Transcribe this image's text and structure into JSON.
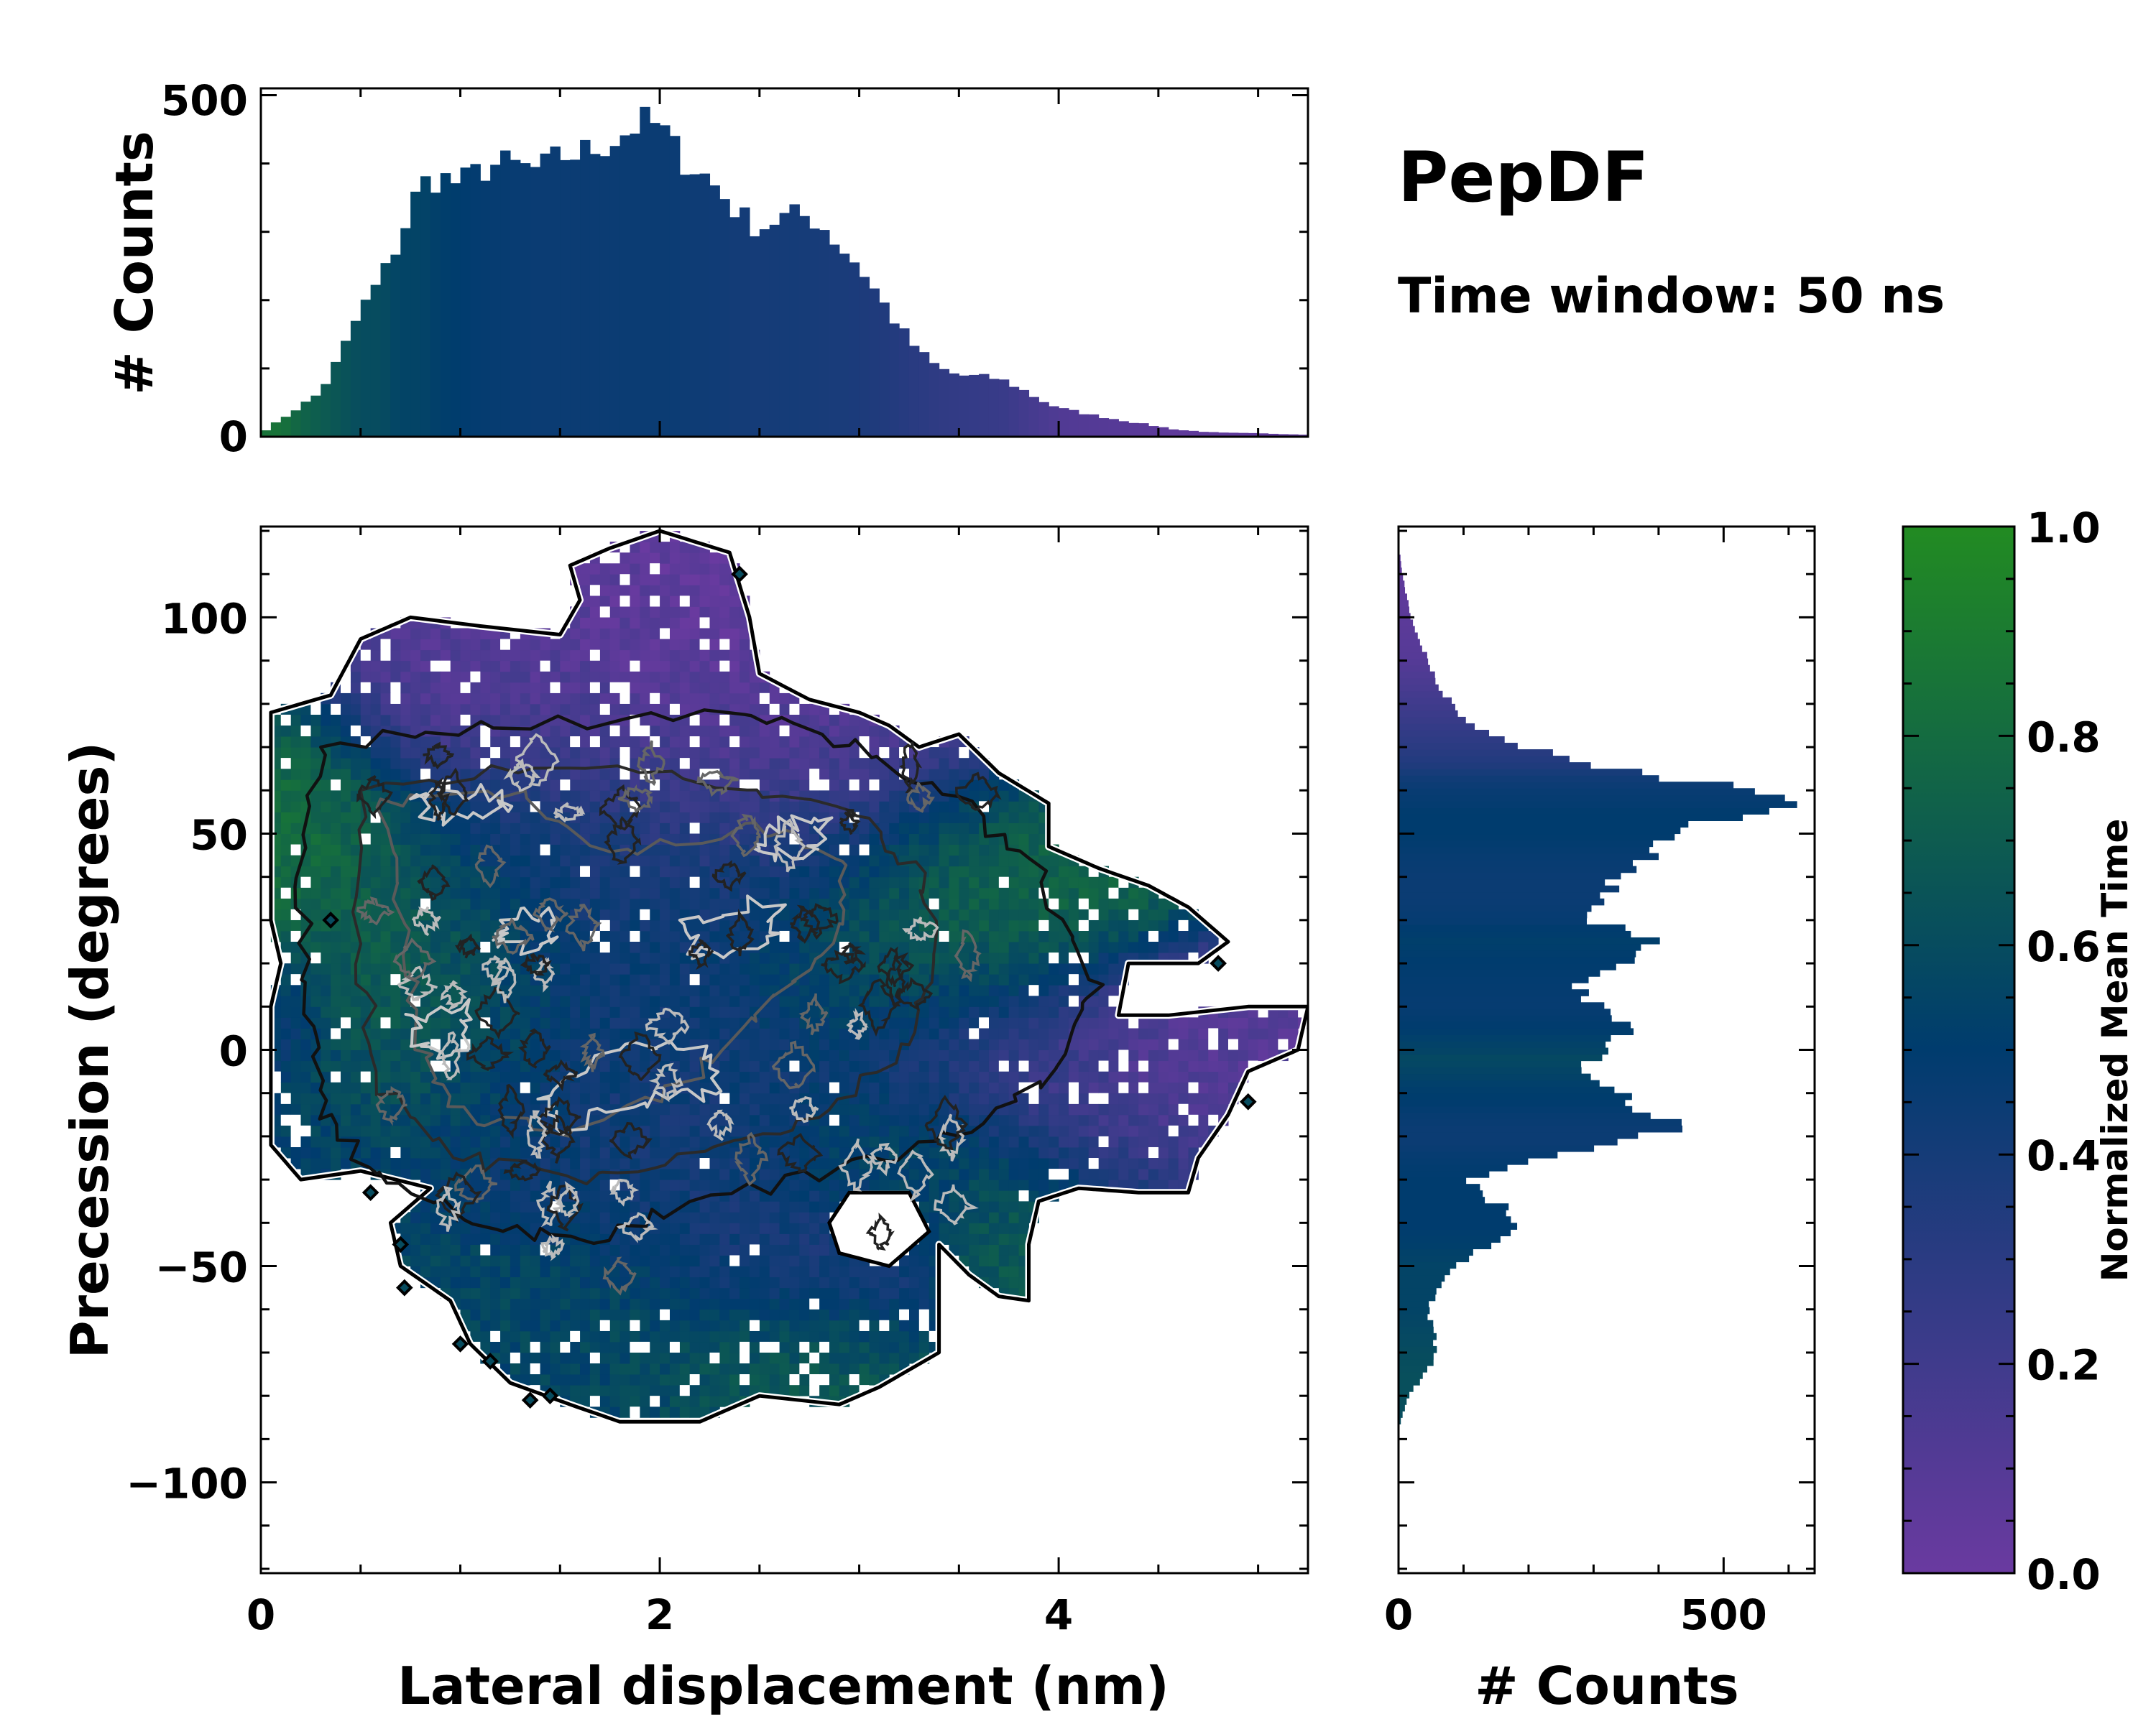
{
  "title": "PepDF",
  "subtitle": "Time window: 50 ns",
  "colorbar": {
    "label": "Normalized Mean Time",
    "range": [
      0.0,
      1.0
    ],
    "ticks": [
      "0.0",
      "0.2",
      "0.4",
      "0.6",
      "0.8",
      "1.0"
    ],
    "colors": {
      "low": "#6a3aa0",
      "mid": "#003c6e",
      "high": "#228b22"
    }
  },
  "chart_data": [
    {
      "id": "top_histogram",
      "type": "bar",
      "xlabel": "",
      "ylabel": "# Counts",
      "xlim": [
        0,
        5.25
      ],
      "ylim": [
        0,
        510
      ],
      "yticks": [
        "0",
        "500"
      ],
      "bin_width": 0.05,
      "profile_x": [
        0,
        0.1,
        0.2,
        0.3,
        0.4,
        0.5,
        0.6,
        0.7,
        0.8,
        0.9,
        1.0,
        1.1,
        1.2,
        1.3,
        1.4,
        1.5,
        1.6,
        1.7,
        1.8,
        1.9,
        2.0,
        2.1,
        2.2,
        2.3,
        2.4,
        2.5,
        2.6,
        2.7,
        2.8,
        2.9,
        3.0,
        3.1,
        3.2,
        3.3,
        3.4,
        3.5,
        3.6,
        3.7,
        3.8,
        3.9,
        4.0,
        4.2,
        4.4,
        4.6,
        4.8,
        5.0,
        5.25
      ],
      "profile_counts": [
        5,
        25,
        45,
        65,
        120,
        185,
        230,
        290,
        370,
        380,
        370,
        390,
        400,
        395,
        390,
        410,
        415,
        425,
        440,
        460,
        455,
        410,
        390,
        360,
        325,
        305,
        320,
        325,
        315,
        280,
        250,
        205,
        160,
        125,
        100,
        90,
        88,
        85,
        72,
        55,
        42,
        30,
        20,
        10,
        6,
        5,
        3
      ],
      "profile_color_value": [
        0.85,
        0.85,
        0.75,
        0.7,
        0.65,
        0.6,
        0.6,
        0.55,
        0.55,
        0.52,
        0.5,
        0.48,
        0.47,
        0.46,
        0.45,
        0.45,
        0.45,
        0.45,
        0.45,
        0.45,
        0.45,
        0.44,
        0.43,
        0.42,
        0.41,
        0.4,
        0.4,
        0.4,
        0.39,
        0.38,
        0.37,
        0.35,
        0.33,
        0.3,
        0.28,
        0.26,
        0.25,
        0.24,
        0.2,
        0.16,
        0.12,
        0.1,
        0.08,
        0.05,
        0.05,
        0.05,
        0.05
      ]
    },
    {
      "id": "right_histogram",
      "type": "bar",
      "orientation": "horizontal",
      "xlabel": "# Counts",
      "ylabel": "",
      "xlim": [
        0,
        640
      ],
      "ylim": [
        -121,
        121
      ],
      "xticks": [
        "0",
        "500"
      ],
      "bin_width": 1.5,
      "profile_y": [
        -86,
        -80,
        -75,
        -70,
        -66,
        -60,
        -55,
        -50,
        -45,
        -40,
        -37,
        -34,
        -30,
        -25,
        -22,
        -18,
        -15,
        -12,
        -8,
        -5,
        -2,
        0,
        5,
        10,
        15,
        20,
        25,
        28,
        30,
        35,
        40,
        45,
        50,
        55,
        57,
        60,
        63,
        66,
        70,
        75,
        80,
        85,
        90,
        95,
        100,
        105,
        110,
        115
      ],
      "profile_counts": [
        3,
        15,
        40,
        60,
        55,
        45,
        60,
        90,
        140,
        190,
        170,
        130,
        110,
        200,
        320,
        430,
        390,
        350,
        320,
        270,
        300,
        330,
        340,
        300,
        280,
        330,
        410,
        350,
        280,
        310,
        350,
        390,
        420,
        540,
        585,
        530,
        420,
        280,
        200,
        120,
        80,
        60,
        45,
        30,
        20,
        12,
        6,
        2
      ],
      "profile_color_value": [
        0.6,
        0.62,
        0.62,
        0.6,
        0.58,
        0.55,
        0.55,
        0.55,
        0.52,
        0.5,
        0.5,
        0.5,
        0.5,
        0.48,
        0.45,
        0.45,
        0.47,
        0.5,
        0.52,
        0.55,
        0.58,
        0.55,
        0.5,
        0.47,
        0.48,
        0.5,
        0.52,
        0.5,
        0.47,
        0.45,
        0.45,
        0.47,
        0.5,
        0.5,
        0.48,
        0.46,
        0.42,
        0.35,
        0.3,
        0.25,
        0.2,
        0.15,
        0.1,
        0.08,
        0.07,
        0.06,
        0.05,
        0.05
      ]
    },
    {
      "id": "main_heatmap",
      "type": "heatmap",
      "xlabel": "Lateral displacement (nm)",
      "ylabel": "Precession (degrees)",
      "xlim": [
        0,
        5.25
      ],
      "ylim": [
        -121,
        121
      ],
      "xticks": [
        "0",
        "2",
        "4"
      ],
      "yticks": [
        "−100",
        "−50",
        "0",
        "50",
        "100"
      ],
      "grid": false,
      "color_regions": [
        {
          "x": 0.8,
          "y": 95,
          "w": 1.0,
          "h": 35,
          "value": 0.1
        },
        {
          "x": 2.4,
          "y": 90,
          "w": 1.3,
          "h": 60,
          "value": 0.05
        },
        {
          "x": 0.15,
          "y": 50,
          "w": 0.6,
          "h": 45,
          "value": 0.85
        },
        {
          "x": 0.6,
          "y": 20,
          "w": 0.8,
          "h": 35,
          "value": 0.8
        },
        {
          "x": 0.8,
          "y": 0,
          "w": 0.9,
          "h": 40,
          "value": 0.7
        },
        {
          "x": 2.0,
          "y": 25,
          "w": 2.2,
          "h": 60,
          "value": 0.45
        },
        {
          "x": 3.7,
          "y": 30,
          "w": 0.9,
          "h": 30,
          "value": 0.85
        },
        {
          "x": 3.2,
          "y": 20,
          "w": 1.0,
          "h": 30,
          "value": 0.7
        },
        {
          "x": 3.8,
          "y": 0,
          "w": 1.0,
          "h": 30,
          "value": 0.15
        },
        {
          "x": 4.5,
          "y": 5,
          "w": 0.8,
          "h": 20,
          "value": 0.08
        },
        {
          "x": 3.2,
          "y": -25,
          "w": 0.9,
          "h": 25,
          "value": 0.65
        },
        {
          "x": 1.8,
          "y": -20,
          "w": 2.0,
          "h": 45,
          "value": 0.4
        },
        {
          "x": 1.2,
          "y": -55,
          "w": 1.4,
          "h": 30,
          "value": 0.6
        },
        {
          "x": 2.7,
          "y": -50,
          "w": 0.9,
          "h": 30,
          "value": 0.35
        },
        {
          "x": 3.7,
          "y": -45,
          "w": 0.4,
          "h": 20,
          "value": 0.7
        },
        {
          "x": 1.4,
          "y": -75,
          "w": 1.2,
          "h": 22,
          "value": 0.55
        },
        {
          "x": 2.6,
          "y": -70,
          "w": 0.9,
          "h": 20,
          "value": 0.75
        },
        {
          "x": 0.15,
          "y": 8,
          "w": 0.35,
          "h": 20,
          "value": 0.3
        }
      ],
      "outer_contour_vertices": [
        [
          0.05,
          78
        ],
        [
          0.35,
          82
        ],
        [
          0.5,
          95
        ],
        [
          0.75,
          100
        ],
        [
          1.1,
          98
        ],
        [
          1.5,
          96
        ],
        [
          1.6,
          104
        ],
        [
          1.55,
          112
        ],
        [
          1.75,
          116
        ],
        [
          2.0,
          120
        ],
        [
          2.35,
          115
        ],
        [
          2.45,
          100
        ],
        [
          2.5,
          87
        ],
        [
          2.75,
          81
        ],
        [
          3.0,
          78
        ],
        [
          3.15,
          75
        ],
        [
          3.3,
          70
        ],
        [
          3.5,
          73
        ],
        [
          3.7,
          64
        ],
        [
          3.95,
          57
        ],
        [
          3.95,
          47
        ],
        [
          4.2,
          42
        ],
        [
          4.45,
          38
        ],
        [
          4.65,
          33
        ],
        [
          4.85,
          25
        ],
        [
          4.7,
          20
        ],
        [
          4.35,
          20
        ],
        [
          4.3,
          8
        ],
        [
          4.55,
          8
        ],
        [
          4.95,
          10
        ],
        [
          5.25,
          10
        ],
        [
          5.2,
          0
        ],
        [
          4.95,
          -5
        ],
        [
          4.85,
          -15
        ],
        [
          4.7,
          -25
        ],
        [
          4.65,
          -33
        ],
        [
          4.4,
          -33
        ],
        [
          4.1,
          -32
        ],
        [
          3.9,
          -35
        ],
        [
          3.85,
          -45
        ],
        [
          3.85,
          -58
        ],
        [
          3.7,
          -57
        ],
        [
          3.55,
          -52
        ],
        [
          3.4,
          -45
        ],
        [
          3.4,
          -58
        ],
        [
          3.4,
          -70
        ],
        [
          3.1,
          -78
        ],
        [
          2.9,
          -82
        ],
        [
          2.5,
          -80
        ],
        [
          2.2,
          -86
        ],
        [
          1.8,
          -86
        ],
        [
          1.55,
          -82
        ],
        [
          1.25,
          -77
        ],
        [
          1.05,
          -68
        ],
        [
          0.95,
          -58
        ],
        [
          0.7,
          -50
        ],
        [
          0.65,
          -40
        ],
        [
          0.85,
          -32
        ],
        [
          0.5,
          -28
        ],
        [
          0.2,
          -30
        ],
        [
          0.05,
          -22
        ],
        [
          0.05,
          -5
        ],
        [
          0.05,
          10
        ],
        [
          0.1,
          20
        ],
        [
          0.05,
          30
        ],
        [
          0.05,
          45
        ],
        [
          0.05,
          60
        ]
      ],
      "hole_vertices": [
        [
          2.95,
          -33
        ],
        [
          3.25,
          -33
        ],
        [
          3.35,
          -42
        ],
        [
          3.15,
          -50
        ],
        [
          2.9,
          -47
        ],
        [
          2.85,
          -40
        ]
      ],
      "contour_rings": [
        {
          "level": "outer-dark",
          "points": [
            [
              0.3,
              70
            ],
            [
              1.2,
              75
            ],
            [
              2.4,
              78
            ],
            [
              3.0,
              70
            ],
            [
              3.5,
              58
            ],
            [
              3.9,
              40
            ],
            [
              4.2,
              15
            ],
            [
              4.0,
              -5
            ],
            [
              3.5,
              -20
            ],
            [
              2.9,
              -28
            ],
            [
              2.2,
              -35
            ],
            [
              1.6,
              -45
            ],
            [
              1.1,
              -40
            ],
            [
              0.6,
              -30
            ],
            [
              0.3,
              -15
            ],
            [
              0.25,
              10
            ],
            [
              0.2,
              40
            ]
          ]
        },
        {
          "level": "mid-dark",
          "points": [
            [
              0.5,
              60
            ],
            [
              1.4,
              65
            ],
            [
              2.4,
              62
            ],
            [
              3.0,
              55
            ],
            [
              3.3,
              40
            ],
            [
              3.4,
              20
            ],
            [
              3.2,
              0
            ],
            [
              2.8,
              -15
            ],
            [
              2.2,
              -25
            ],
            [
              1.6,
              -30
            ],
            [
              1.0,
              -25
            ],
            [
              0.6,
              -10
            ],
            [
              0.5,
              20
            ]
          ]
        },
        {
          "level": "mid-grey",
          "points": [
            [
              0.6,
              58
            ],
            [
              1.3,
              58
            ],
            [
              1.8,
              45
            ],
            [
              2.5,
              52
            ],
            [
              2.9,
              45
            ],
            [
              2.9,
              25
            ],
            [
              2.5,
              10
            ],
            [
              2.2,
              -5
            ],
            [
              1.6,
              -20
            ],
            [
              1.0,
              -15
            ],
            [
              0.8,
              0
            ],
            [
              0.7,
              30
            ]
          ]
        },
        {
          "level": "light-grey",
          "points": [
            [
              0.75,
              58
            ],
            [
              1.15,
              60
            ],
            [
              1.25,
              55
            ],
            [
              0.9,
              53
            ]
          ]
        },
        {
          "level": "light-grey",
          "points": [
            [
              2.55,
              52
            ],
            [
              2.85,
              53
            ],
            [
              2.75,
              45
            ],
            [
              2.5,
              46
            ]
          ]
        },
        {
          "level": "light-grey",
          "points": [
            [
              0.75,
              8
            ],
            [
              1.05,
              10
            ],
            [
              1.0,
              0
            ],
            [
              0.8,
              0
            ]
          ]
        },
        {
          "level": "light-grey",
          "points": [
            [
              1.8,
              0
            ],
            [
              2.2,
              2
            ],
            [
              2.3,
              -10
            ],
            [
              1.9,
              -12
            ],
            [
              1.5,
              -18
            ],
            [
              1.4,
              -10
            ]
          ]
        },
        {
          "level": "light-grey",
          "points": [
            [
              2.1,
              30
            ],
            [
              2.6,
              35
            ],
            [
              2.55,
              25
            ],
            [
              2.2,
              22
            ]
          ]
        },
        {
          "level": "light-grey",
          "points": [
            [
              1.2,
              30
            ],
            [
              1.45,
              32
            ],
            [
              1.45,
              24
            ],
            [
              1.2,
              24
            ]
          ]
        }
      ]
    }
  ]
}
